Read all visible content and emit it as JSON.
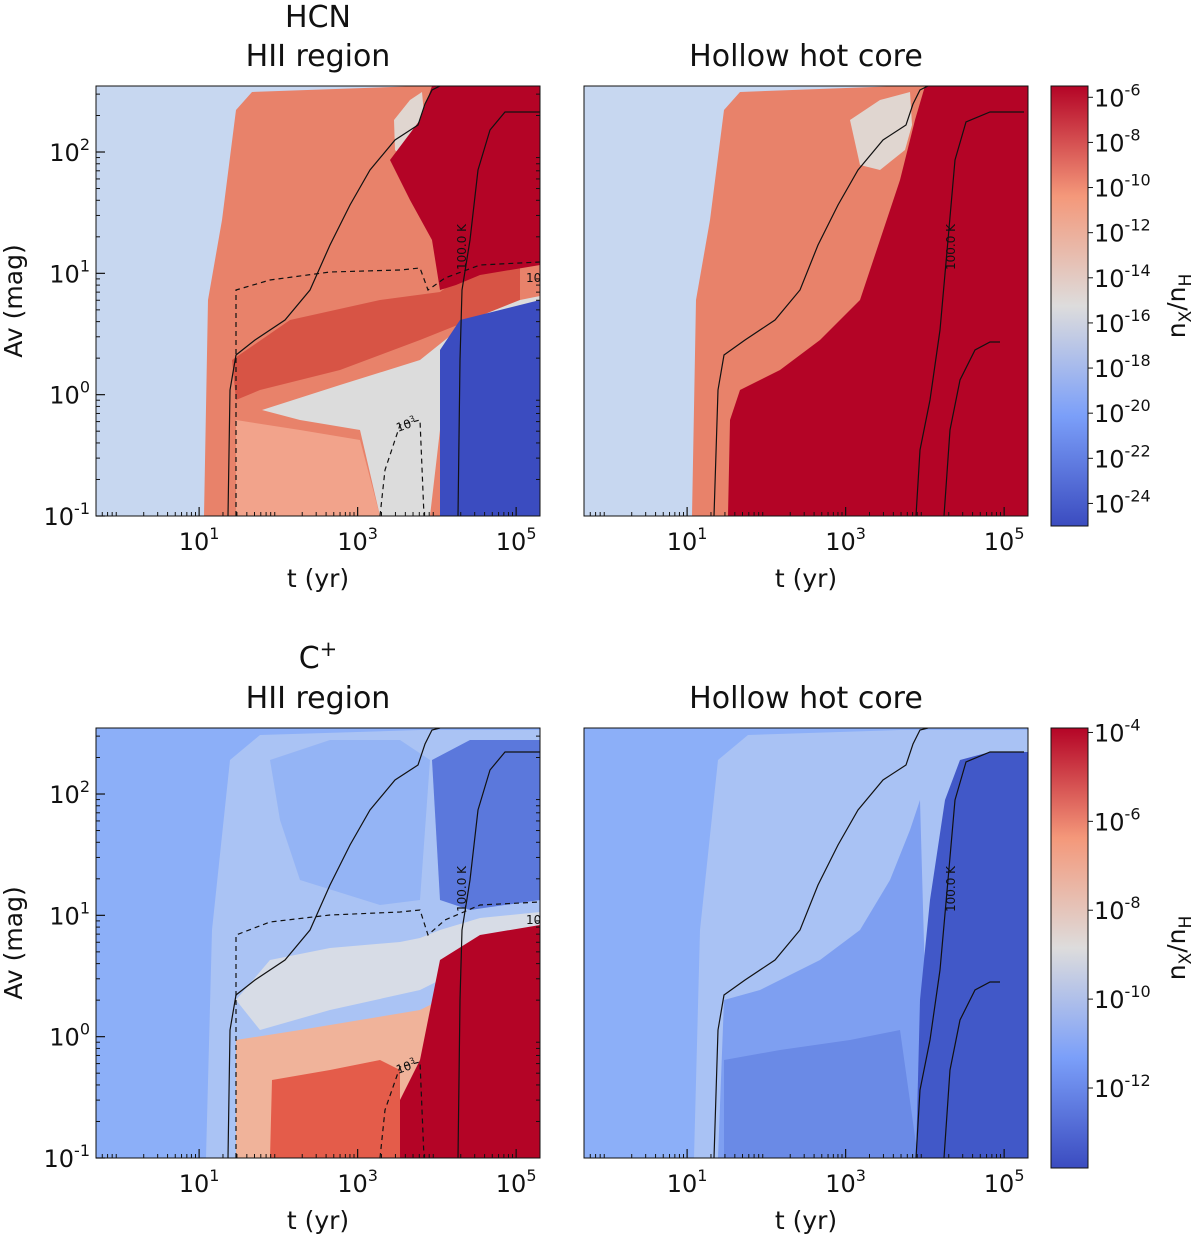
{
  "figure": {
    "colorbar_label": "n_X/n_H"
  },
  "chart_data": [
    {
      "type": "heatmap",
      "id": "hcn-hii",
      "title": [
        "HCN",
        "HII region"
      ],
      "xlabel": "t (yr)",
      "ylabel": "Av (mag)",
      "xscale": "log",
      "yscale": "log",
      "xlim": [
        0.5,
        200000
      ],
      "ylim": [
        0.1,
        350
      ],
      "xticks": [
        {
          "value": 10,
          "label": "10^1"
        },
        {
          "value": 1000,
          "label": "10^3"
        },
        {
          "value": 100000,
          "label": "10^5"
        }
      ],
      "yticks": [
        {
          "value": 0.1,
          "label": "10^-1"
        },
        {
          "value": 1,
          "label": "10^0"
        },
        {
          "value": 10,
          "label": "10^1"
        },
        {
          "value": 100,
          "label": "10^2"
        }
      ],
      "contour_labels": [
        "100.0 K",
        "10^3",
        "10"
      ]
    },
    {
      "type": "heatmap",
      "id": "hcn-hhc",
      "title": [
        "Hollow hot core"
      ],
      "xlabel": "t (yr)",
      "ylabel": "",
      "xscale": "log",
      "yscale": "log",
      "xlim": [
        0.5,
        200000
      ],
      "ylim": [
        0.1,
        350
      ],
      "xticks": [
        {
          "value": 10,
          "label": "10^1"
        },
        {
          "value": 1000,
          "label": "10^3"
        },
        {
          "value": 100000,
          "label": "10^5"
        }
      ],
      "contour_labels": [
        "100.0 K"
      ],
      "colorbar": {
        "label": "n_X/n_H",
        "range": [
          -25,
          -5.5
        ],
        "ticks": [
          "10^-6",
          "10^-8",
          "10^-10",
          "10^-12",
          "10^-14",
          "10^-16",
          "10^-18",
          "10^-20",
          "10^-22",
          "10^-24"
        ],
        "tick_exponents": [
          -6,
          -8,
          -10,
          -12,
          -14,
          -16,
          -18,
          -20,
          -22,
          -24
        ]
      }
    },
    {
      "type": "heatmap",
      "id": "cplus-hii",
      "title": [
        "C^+",
        "HII region"
      ],
      "xlabel": "t (yr)",
      "ylabel": "Av (mag)",
      "xscale": "log",
      "yscale": "log",
      "xlim": [
        0.5,
        200000
      ],
      "ylim": [
        0.1,
        350
      ],
      "xticks": [
        {
          "value": 10,
          "label": "10^1"
        },
        {
          "value": 1000,
          "label": "10^3"
        },
        {
          "value": 100000,
          "label": "10^5"
        }
      ],
      "yticks": [
        {
          "value": 0.1,
          "label": "10^-1"
        },
        {
          "value": 1,
          "label": "10^0"
        },
        {
          "value": 10,
          "label": "10^1"
        },
        {
          "value": 100,
          "label": "10^2"
        }
      ],
      "contour_labels": [
        "100.0 K",
        "10^3",
        "10"
      ]
    },
    {
      "type": "heatmap",
      "id": "cplus-hhc",
      "title": [
        "Hollow hot core"
      ],
      "xlabel": "t (yr)",
      "ylabel": "",
      "xscale": "log",
      "yscale": "log",
      "xlim": [
        0.5,
        200000
      ],
      "ylim": [
        0.1,
        350
      ],
      "xticks": [
        {
          "value": 10,
          "label": "10^1"
        },
        {
          "value": 1000,
          "label": "10^3"
        },
        {
          "value": 100000,
          "label": "10^5"
        }
      ],
      "contour_labels": [
        "100.0 K"
      ],
      "colorbar": {
        "label": "n_X/n_H",
        "range": [
          -13.8,
          -3.9
        ],
        "ticks": [
          "10^-4",
          "10^-6",
          "10^-8",
          "10^-10",
          "10^-12"
        ],
        "tick_exponents": [
          -4,
          -6,
          -8,
          -10,
          -12
        ]
      }
    }
  ]
}
